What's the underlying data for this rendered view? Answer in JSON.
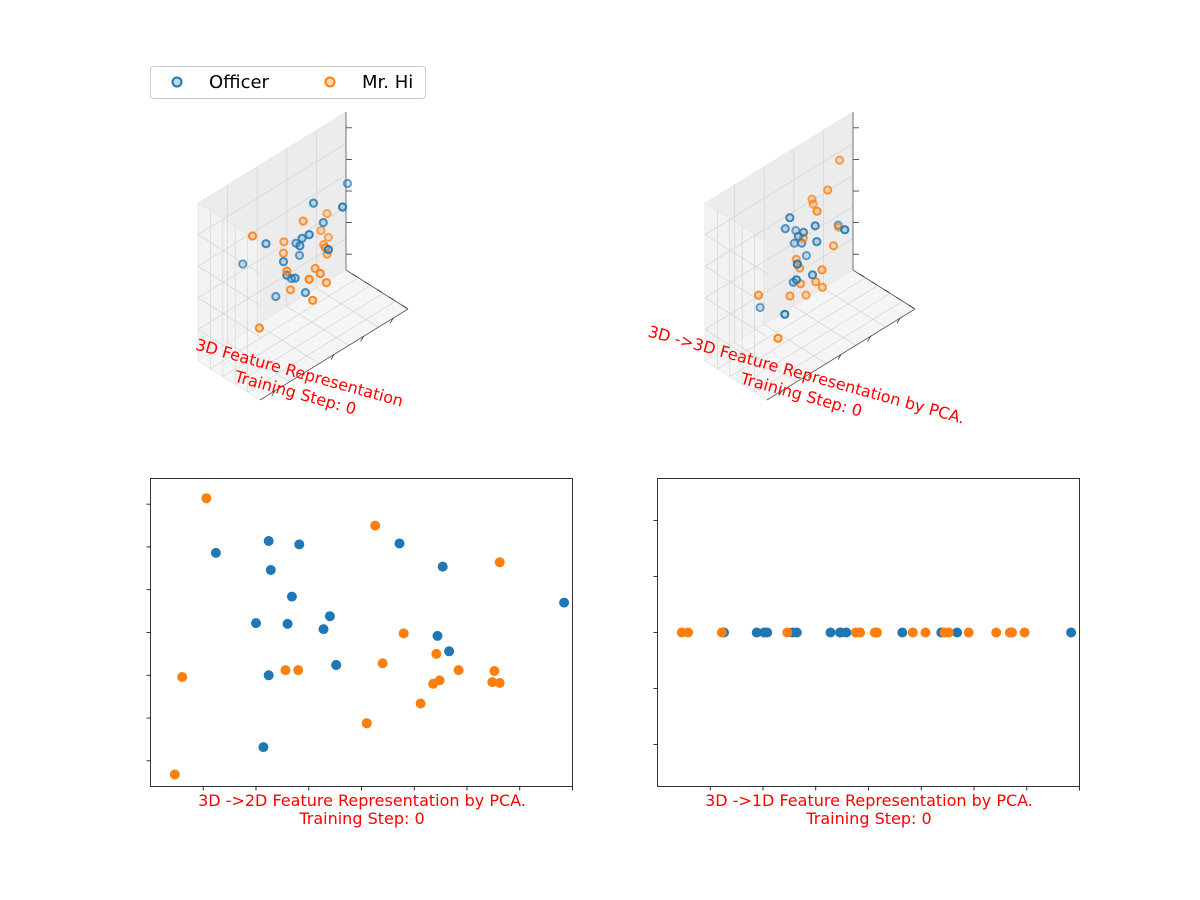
{
  "legend": {
    "placement": "top-left",
    "entries": [
      {
        "label": "Officer",
        "color": "#1f77b4"
      },
      {
        "label": "Mr. Hi",
        "color": "#ff7f0e"
      }
    ]
  },
  "colors": {
    "officer": "#1f77b4",
    "mrhi": "#ff7f0e",
    "caption": "#ff0000",
    "pane": "#f2f2f2"
  },
  "chart_data": [
    {
      "type": "scatter",
      "projection": "3d",
      "ticks_labels_hidden": true,
      "caption_line1": "3D Feature Representation",
      "caption_line2": "Training Step: 0",
      "series": [
        {
          "name": "Officer",
          "points": [
            [
              0.13,
              0.59,
              0.64
            ],
            [
              0.56,
              0.7,
              0.42
            ],
            [
              0.6,
              0.57,
              0.76
            ],
            [
              0.49,
              0.49,
              0.62
            ],
            [
              0.36,
              0.48,
              0.55
            ],
            [
              0.35,
              0.58,
              0.31
            ],
            [
              0.45,
              0.43,
              0.61
            ],
            [
              0.43,
              0.46,
              0.41
            ],
            [
              0.55,
              0.58,
              0.22
            ],
            [
              0.63,
              0.4,
              0.49
            ],
            [
              0.96,
              0.88,
              0.6
            ],
            [
              0.7,
              0.65,
              0.56
            ],
            [
              0.34,
              0.38,
              0.5
            ],
            [
              0.73,
              0.41,
              0.7
            ],
            [
              0.5,
              0.4,
              0.66
            ],
            [
              0.52,
              0.66,
              0.53
            ],
            [
              0.51,
              0.71,
              0.3
            ],
            [
              0.2,
              0.38,
              0.78
            ]
          ]
        },
        {
          "name": "Mr. Hi",
          "points": [
            [
              0.08,
              0.2,
              0.36
            ],
            [
              0.05,
              0.24,
              0.95
            ],
            [
              0.32,
              0.33,
              0.55
            ],
            [
              0.49,
              0.32,
              0.27
            ],
            [
              0.51,
              0.52,
              0.71
            ],
            [
              0.63,
              0.45,
              0.49
            ],
            [
              0.62,
              0.59,
              0.33
            ],
            [
              0.4,
              0.57,
              0.63
            ],
            [
              0.73,
              0.66,
              0.34
            ],
            [
              0.76,
              0.83,
              0.43
            ],
            [
              0.42,
              0.51,
              0.33
            ],
            [
              0.42,
              0.21,
              0.47
            ],
            [
              0.55,
              0.34,
              0.4
            ],
            [
              0.38,
              0.53,
              0.58
            ],
            [
              0.65,
              0.48,
              0.25
            ],
            [
              0.77,
              0.81,
              0.34
            ],
            [
              0.86,
              0.95,
              0.3
            ],
            [
              0.83,
              0.9,
              0.48
            ]
          ]
        }
      ]
    },
    {
      "type": "scatter",
      "projection": "3d",
      "ticks_labels_hidden": true,
      "caption_line1": "3D ->3D Feature Representation by PCA.",
      "caption_line2": "Training Step: 0",
      "series": [
        {
          "name": "Officer",
          "points": [
            [
              0.55,
              0.51,
              0.56
            ],
            [
              0.51,
              0.44,
              0.7
            ],
            [
              0.2,
              0.19,
              0.38
            ],
            [
              0.31,
              0.25,
              0.62
            ],
            [
              0.35,
              0.36,
              0.47
            ],
            [
              0.5,
              0.46,
              0.39
            ],
            [
              0.23,
              0.66,
              0.29
            ],
            [
              0.53,
              0.8,
              0.57
            ],
            [
              0.71,
              0.44,
              0.56
            ],
            [
              0.85,
              0.88,
              0.4
            ],
            [
              0.49,
              0.61,
              0.56
            ],
            [
              0.43,
              0.52,
              0.66
            ],
            [
              0.35,
              0.54,
              0.75
            ],
            [
              0.49,
              0.73,
              0.53
            ],
            [
              0.61,
              0.82,
              0.36
            ],
            [
              0.33,
              0.42,
              0.86
            ],
            [
              0.42,
              0.58,
              0.36
            ],
            [
              0.46,
              0.51,
              0.67
            ]
          ]
        },
        {
          "name": "Mr. Hi",
          "points": [
            [
              0.06,
              0.28,
              0.56
            ],
            [
              0.15,
              0.18,
              0.26
            ],
            [
              0.54,
              0.66,
              0.19
            ],
            [
              0.46,
              0.57,
              0.43
            ],
            [
              0.84,
              0.85,
              0.4
            ],
            [
              0.63,
              0.61,
              0.2
            ],
            [
              0.56,
              0.55,
              0.29
            ],
            [
              0.56,
              0.45,
              0.39
            ],
            [
              0.73,
              0.67,
              0.39
            ],
            [
              0.51,
              0.41,
              0.8
            ],
            [
              0.36,
              0.49,
              0.33
            ],
            [
              0.42,
              0.46,
              0.38
            ],
            [
              0.61,
              0.73,
              0.74
            ],
            [
              0.47,
              0.65,
              0.46
            ],
            [
              0.63,
              0.76,
              0.69
            ],
            [
              0.67,
              0.62,
              0.79
            ],
            [
              0.83,
              0.81,
              0.84
            ],
            [
              0.48,
              0.56,
              0.61
            ]
          ]
        }
      ]
    },
    {
      "type": "scatter",
      "ticks_labels_hidden": true,
      "xlim": [
        -2.0,
        2.0
      ],
      "ylim": [
        -1.8,
        1.8
      ],
      "grid": false,
      "caption_line1": "3D ->2D Feature Representation by PCA.",
      "caption_line2": "Training Step: 0",
      "series": [
        {
          "name": "Officer",
          "x": [
            -1.38,
            -0.88,
            -0.86,
            -0.59,
            -1.0,
            -0.7,
            -0.66,
            -0.36,
            -0.24,
            -0.3,
            -0.24,
            0.36,
            0.77,
            0.72,
            0.83,
            1.92,
            -0.88,
            -0.93
          ],
          "y": [
            0.93,
            1.07,
            0.73,
            1.03,
            0.11,
            0.1,
            0.42,
            0.04,
            -0.38,
            0.19,
            -0.38,
            1.04,
            0.77,
            -0.04,
            -0.22,
            0.35,
            -0.5,
            -1.34
          ]
        },
        {
          "name": "Mr. Hi",
          "x": [
            -1.77,
            -1.7,
            -1.47,
            -0.72,
            0.13,
            0.4,
            0.2,
            0.05,
            0.68,
            0.56,
            0.74,
            0.71,
            0.92,
            1.24,
            1.26,
            1.31,
            1.31,
            0.05,
            -0.6
          ],
          "y": [
            -1.66,
            -0.52,
            1.57,
            -0.44,
            1.25,
            -0.01,
            -0.36,
            -1.06,
            -0.6,
            -0.83,
            -0.56,
            -0.25,
            -0.44,
            -0.58,
            -0.45,
            -0.59,
            0.82,
            -1.06,
            -0.44
          ]
        }
      ]
    },
    {
      "type": "scatter",
      "ticks_labels_hidden": true,
      "xlim": [
        -2.0,
        2.0
      ],
      "ylim": [
        -0.055,
        0.055
      ],
      "grid": false,
      "caption_line1": "3D ->1D Feature Representation by PCA.",
      "caption_line2": "Training Step: 0",
      "series": [
        {
          "name": "Officer",
          "x": [
            -1.37,
            -1.06,
            -0.99,
            -0.96,
            -0.72,
            -0.68,
            -0.36,
            -0.27,
            -0.26,
            -0.21,
            0.32,
            0.69,
            0.76,
            0.84,
            1.92
          ],
          "y": [
            0,
            0,
            0,
            0,
            0,
            0,
            0,
            0,
            0,
            0,
            0,
            0,
            0,
            0,
            0
          ]
        },
        {
          "name": "Mr. Hi",
          "x": [
            -1.77,
            -1.71,
            -1.39,
            -0.77,
            -0.12,
            -0.08,
            0.06,
            0.08,
            0.42,
            0.54,
            0.72,
            0.76,
            0.95,
            1.21,
            1.34,
            1.36,
            1.48
          ],
          "y": [
            0,
            0,
            0,
            0,
            0,
            0,
            0,
            0,
            0,
            0,
            0,
            0,
            0,
            0,
            0,
            0,
            0
          ]
        }
      ]
    }
  ]
}
